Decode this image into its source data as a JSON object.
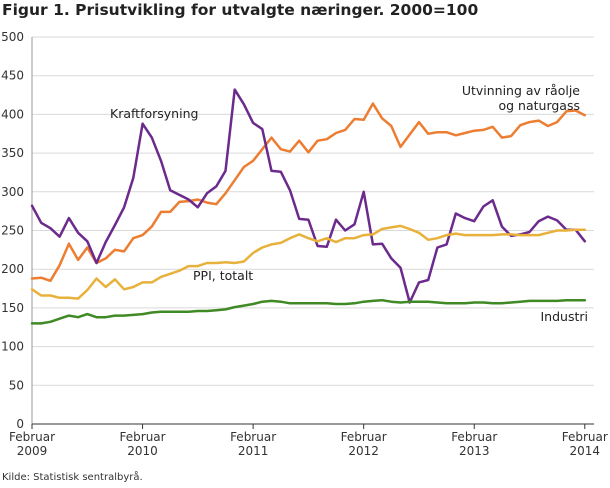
{
  "title": "Figur 1. Prisutvikling for utvalgte næringer. 2000=100",
  "source": "Kilde: Statistisk sentralbyrå.",
  "chart_data": {
    "type": "line",
    "ylim": [
      0,
      500
    ],
    "yticks": [
      0,
      50,
      100,
      150,
      200,
      250,
      300,
      350,
      400,
      450,
      500
    ],
    "xlim": [
      0,
      61
    ],
    "xticks": [
      {
        "month": 0,
        "line1": "Februar",
        "line2": "2009"
      },
      {
        "month": 12,
        "line1": "Februar",
        "line2": "2010"
      },
      {
        "month": 24,
        "line1": "Februar",
        "line2": "2011"
      },
      {
        "month": 36,
        "line1": "Februar",
        "line2": "2012"
      },
      {
        "month": 48,
        "line1": "Februar",
        "line2": "2013"
      },
      {
        "month": 60,
        "line1": "Februar",
        "line2": "2014"
      }
    ],
    "x_desc": "Monthly observations, Februar 2009 through Februar 2014",
    "series": [
      {
        "name": "Utvinning av råolje og naturgass",
        "label_lines": [
          "Utvinning av råolje",
          "og naturgass"
        ],
        "color": "#ed7d31",
        "values": [
          188,
          189,
          185,
          205,
          233,
          212,
          228,
          208,
          214,
          225,
          223,
          240,
          244,
          255,
          274,
          274,
          287,
          288,
          290,
          286,
          284,
          298,
          315,
          332,
          340,
          355,
          370,
          355,
          352,
          366,
          351,
          366,
          368,
          376,
          380,
          394,
          393,
          414,
          395,
          385,
          358,
          374,
          390,
          375,
          377,
          377,
          373,
          376,
          379,
          380,
          384,
          370,
          372,
          386,
          390,
          392,
          385,
          390,
          404,
          405,
          399
        ]
      },
      {
        "name": "Kraftforsyning",
        "label_lines": [
          "Kraftforsyning"
        ],
        "color": "#6b2a8c",
        "values": [
          282,
          260,
          253,
          242,
          266,
          247,
          236,
          208,
          235,
          257,
          280,
          318,
          388,
          370,
          340,
          302,
          296,
          290,
          280,
          298,
          307,
          327,
          432,
          413,
          389,
          381,
          327,
          326,
          302,
          265,
          264,
          230,
          229,
          264,
          250,
          258,
          300,
          232,
          233,
          214,
          202,
          157,
          183,
          186,
          228,
          232,
          272,
          266,
          262,
          281,
          289,
          255,
          243,
          245,
          248,
          262,
          268,
          263,
          251,
          251,
          236
        ]
      },
      {
        "name": "PPI, totalt",
        "label_lines": [
          "PPI, totalt"
        ],
        "color": "#e8b13b",
        "values": [
          174,
          166,
          166,
          163,
          163,
          162,
          173,
          188,
          177,
          187,
          174,
          177,
          183,
          183,
          190,
          194,
          198,
          204,
          204,
          208,
          208,
          209,
          208,
          210,
          221,
          228,
          232,
          234,
          240,
          245,
          240,
          236,
          240,
          235,
          240,
          240,
          244,
          245,
          252,
          254,
          256,
          252,
          247,
          238,
          240,
          244,
          246,
          244,
          244,
          244,
          244,
          245,
          245,
          244,
          244,
          244,
          247,
          250,
          250,
          251,
          251
        ]
      },
      {
        "name": "Industri",
        "label_lines": [
          "Industri"
        ],
        "color": "#3f8a24",
        "values": [
          130,
          130,
          132,
          136,
          140,
          138,
          142,
          138,
          138,
          140,
          140,
          141,
          142,
          144,
          145,
          145,
          145,
          145,
          146,
          146,
          147,
          148,
          151,
          153,
          155,
          158,
          159,
          158,
          156,
          156,
          156,
          156,
          156,
          155,
          155,
          156,
          158,
          159,
          160,
          158,
          157,
          158,
          158,
          158,
          157,
          156,
          156,
          156,
          157,
          157,
          156,
          156,
          157,
          158,
          159,
          159,
          159,
          159,
          160,
          160,
          160
        ]
      }
    ]
  }
}
